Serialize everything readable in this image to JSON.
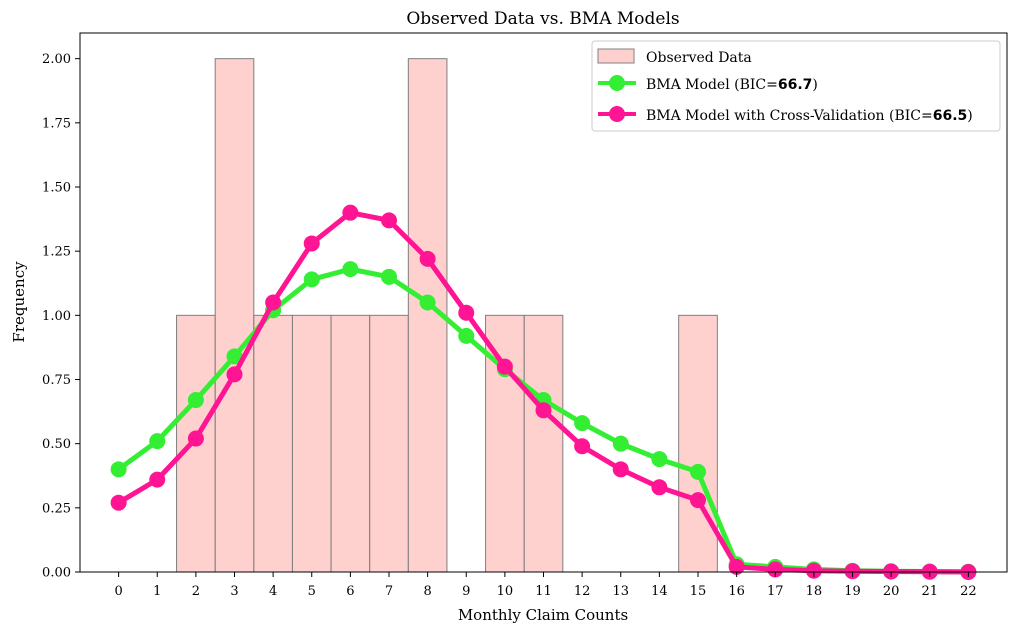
{
  "chart_data": {
    "type": "bar",
    "title": "Observed Data vs. BMA Models",
    "xlabel": "Monthly Claim Counts",
    "ylabel": "Frequency",
    "xlim": [
      -1,
      23
    ],
    "ylim": [
      0,
      2.1
    ],
    "grid": false,
    "legend_position": "top-right",
    "x_ticks": [
      0,
      1,
      2,
      3,
      4,
      5,
      6,
      7,
      8,
      9,
      10,
      11,
      12,
      13,
      14,
      15,
      16,
      17,
      18,
      19,
      20,
      21,
      22
    ],
    "y_ticks": [
      0,
      0.25,
      0.5,
      0.75,
      1.0,
      1.25,
      1.5,
      1.75,
      2.0
    ],
    "y_tick_labels": [
      "0.00",
      "0.25",
      "0.50",
      "0.75",
      "1.00",
      "1.25",
      "1.50",
      "1.75",
      "2.00"
    ],
    "histogram": {
      "name": "Observed Data",
      "color": "#ffb3ae",
      "edge_color": "#7f7f7f",
      "bins": [
        {
          "x": 2,
          "value": 1
        },
        {
          "x": 3,
          "value": 2
        },
        {
          "x": 4,
          "value": 1
        },
        {
          "x": 5,
          "value": 1
        },
        {
          "x": 6,
          "value": 1
        },
        {
          "x": 7,
          "value": 1
        },
        {
          "x": 8,
          "value": 2
        },
        {
          "x": 10,
          "value": 1
        },
        {
          "x": 11,
          "value": 1
        },
        {
          "x": 15,
          "value": 1
        }
      ]
    },
    "series": [
      {
        "name_prefix": "BMA Model (BIC=",
        "bic": "66.7",
        "name_suffix": ")",
        "color": "#33ee33",
        "x": [
          0,
          1,
          2,
          3,
          4,
          5,
          6,
          7,
          8,
          9,
          10,
          11,
          12,
          13,
          14,
          15,
          16,
          17,
          18,
          19,
          20,
          21,
          22
        ],
        "values": [
          0.4,
          0.51,
          0.67,
          0.84,
          1.02,
          1.14,
          1.18,
          1.15,
          1.05,
          0.92,
          0.79,
          0.67,
          0.58,
          0.5,
          0.44,
          0.39,
          0.03,
          0.02,
          0.01,
          0.005,
          0.003,
          0.002,
          0.001
        ]
      },
      {
        "name_prefix": "BMA Model with Cross-Validation (BIC=",
        "bic": "66.5",
        "name_suffix": ")",
        "color": "#ff1493",
        "x": [
          0,
          1,
          2,
          3,
          4,
          5,
          6,
          7,
          8,
          9,
          10,
          11,
          12,
          13,
          14,
          15,
          16,
          17,
          18,
          19,
          20,
          21,
          22
        ],
        "values": [
          0.27,
          0.36,
          0.52,
          0.77,
          1.05,
          1.28,
          1.4,
          1.37,
          1.22,
          1.01,
          0.8,
          0.63,
          0.49,
          0.4,
          0.33,
          0.28,
          0.02,
          0.01,
          0.005,
          0.003,
          0.002,
          0.001,
          0.0
        ]
      }
    ]
  }
}
